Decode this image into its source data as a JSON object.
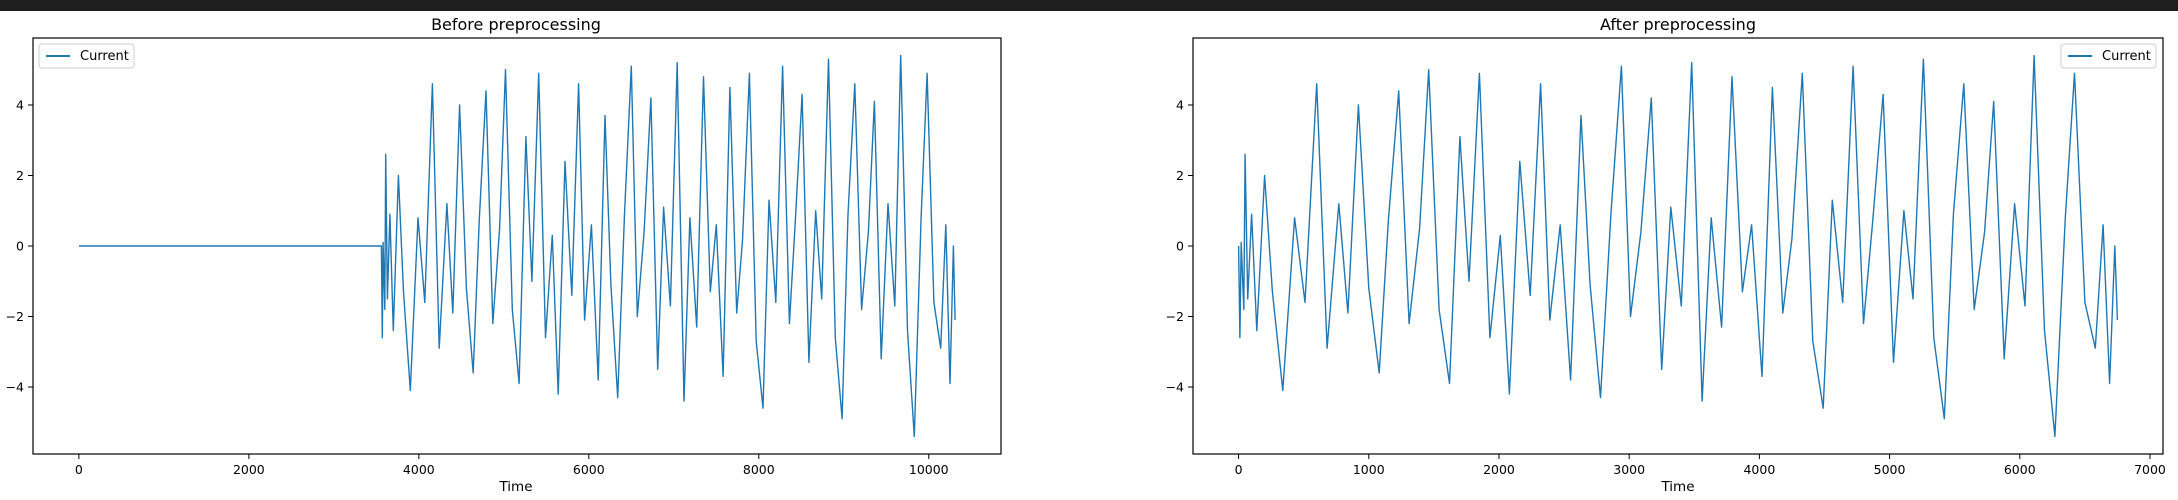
{
  "chart_data": [
    {
      "type": "line",
      "title": "Before preprocessing",
      "xlabel": "Time",
      "ylabel": "",
      "xlim": [
        -540,
        10850
      ],
      "ylim": [
        -5.9,
        5.9
      ],
      "x_ticks": [
        0,
        2000,
        4000,
        6000,
        8000,
        10000
      ],
      "y_ticks": [
        -4,
        -2,
        0,
        2,
        4
      ],
      "legend": "top-left",
      "series": [
        {
          "name": "Current",
          "color": "#1f77b4",
          "x": [
            0,
            3560,
            3570,
            3580,
            3600,
            3610,
            3630,
            3660,
            3700,
            3760,
            3820,
            3900,
            3990,
            4070,
            4160,
            4240,
            4330,
            4400,
            4480,
            4560,
            4640,
            4710,
            4790,
            4870,
            4950,
            5020,
            5100,
            5180,
            5260,
            5330,
            5410,
            5490,
            5570,
            5640,
            5720,
            5800,
            5880,
            5950,
            6030,
            6110,
            6190,
            6260,
            6340,
            6420,
            6500,
            6570,
            6650,
            6730,
            6810,
            6880,
            6960,
            7040,
            7120,
            7190,
            7270,
            7350,
            7430,
            7500,
            7580,
            7660,
            7740,
            7810,
            7890,
            7970,
            8050,
            8120,
            8200,
            8280,
            8360,
            8430,
            8510,
            8590,
            8670,
            8740,
            8820,
            8900,
            8980,
            9050,
            9130,
            9210,
            9290,
            9360,
            9440,
            9520,
            9600,
            9670,
            9750,
            9830,
            9910,
            9980,
            10060,
            10140,
            10200,
            10250,
            10290,
            10310
          ],
          "y": [
            0,
            0,
            -2.6,
            0.1,
            -1.8,
            2.6,
            -1.5,
            0.9,
            -2.4,
            2.0,
            -1.3,
            -4.1,
            0.8,
            -1.6,
            4.6,
            -2.9,
            1.2,
            -1.9,
            4.0,
            -1.2,
            -3.6,
            0.7,
            4.4,
            -2.2,
            0.5,
            5.0,
            -1.8,
            -3.9,
            3.1,
            -1.0,
            4.9,
            -2.6,
            0.3,
            -4.2,
            2.4,
            -1.4,
            4.6,
            -2.1,
            0.6,
            -3.8,
            3.7,
            -1.1,
            -4.3,
            0.9,
            5.1,
            -2.0,
            0.4,
            4.2,
            -3.5,
            1.1,
            -1.7,
            5.2,
            -4.4,
            0.8,
            -2.3,
            4.8,
            -1.3,
            0.6,
            -3.7,
            4.5,
            -1.9,
            0.2,
            4.9,
            -2.7,
            -4.6,
            1.3,
            -1.6,
            5.1,
            -2.2,
            0.7,
            4.3,
            -3.3,
            1.0,
            -1.5,
            5.3,
            -2.6,
            -4.9,
            0.9,
            4.6,
            -1.8,
            0.4,
            4.1,
            -3.2,
            1.2,
            -1.7,
            5.4,
            -2.4,
            -5.4,
            0.8,
            4.9,
            -1.6,
            -2.9,
            0.6,
            -3.9,
            0.0,
            -2.1
          ]
        }
      ]
    },
    {
      "type": "line",
      "title": "After preprocessing",
      "xlabel": "Time",
      "ylabel": "",
      "xlim": [
        -350,
        7100
      ],
      "ylim": [
        -5.9,
        5.9
      ],
      "x_ticks": [
        0,
        1000,
        2000,
        3000,
        4000,
        5000,
        6000,
        7000
      ],
      "y_ticks": [
        -4,
        -2,
        0,
        2,
        4
      ],
      "legend": "top-right",
      "series": [
        {
          "name": "Current",
          "color": "#1f77b4",
          "x": [
            0,
            10,
            20,
            40,
            50,
            70,
            100,
            140,
            200,
            260,
            340,
            430,
            510,
            600,
            680,
            770,
            840,
            920,
            1000,
            1080,
            1150,
            1230,
            1310,
            1390,
            1460,
            1540,
            1620,
            1700,
            1770,
            1850,
            1930,
            2010,
            2080,
            2160,
            2240,
            2320,
            2390,
            2470,
            2550,
            2630,
            2700,
            2780,
            2860,
            2940,
            3010,
            3090,
            3170,
            3250,
            3320,
            3400,
            3480,
            3560,
            3630,
            3710,
            3790,
            3870,
            3940,
            4020,
            4100,
            4180,
            4250,
            4330,
            4410,
            4490,
            4560,
            4640,
            4720,
            4800,
            4870,
            4950,
            5030,
            5110,
            5180,
            5260,
            5340,
            5420,
            5490,
            5570,
            5650,
            5730,
            5800,
            5880,
            5960,
            6040,
            6110,
            6190,
            6270,
            6350,
            6420,
            6500,
            6580,
            6640,
            6690,
            6730,
            6750
          ],
          "y": [
            0,
            -2.6,
            0.1,
            -1.8,
            2.6,
            -1.5,
            0.9,
            -2.4,
            2.0,
            -1.3,
            -4.1,
            0.8,
            -1.6,
            4.6,
            -2.9,
            1.2,
            -1.9,
            4.0,
            -1.2,
            -3.6,
            0.7,
            4.4,
            -2.2,
            0.5,
            5.0,
            -1.8,
            -3.9,
            3.1,
            -1.0,
            4.9,
            -2.6,
            0.3,
            -4.2,
            2.4,
            -1.4,
            4.6,
            -2.1,
            0.6,
            -3.8,
            3.7,
            -1.1,
            -4.3,
            0.9,
            5.1,
            -2.0,
            0.4,
            4.2,
            -3.5,
            1.1,
            -1.7,
            5.2,
            -4.4,
            0.8,
            -2.3,
            4.8,
            -1.3,
            0.6,
            -3.7,
            4.5,
            -1.9,
            0.2,
            4.9,
            -2.7,
            -4.6,
            1.3,
            -1.6,
            5.1,
            -2.2,
            0.7,
            4.3,
            -3.3,
            1.0,
            -1.5,
            5.3,
            -2.6,
            -4.9,
            0.9,
            4.6,
            -1.8,
            0.4,
            4.1,
            -3.2,
            1.2,
            -1.7,
            5.4,
            -2.4,
            -5.4,
            0.8,
            4.9,
            -1.6,
            -2.9,
            0.6,
            -3.9,
            0.0,
            -2.1
          ]
        }
      ]
    }
  ]
}
